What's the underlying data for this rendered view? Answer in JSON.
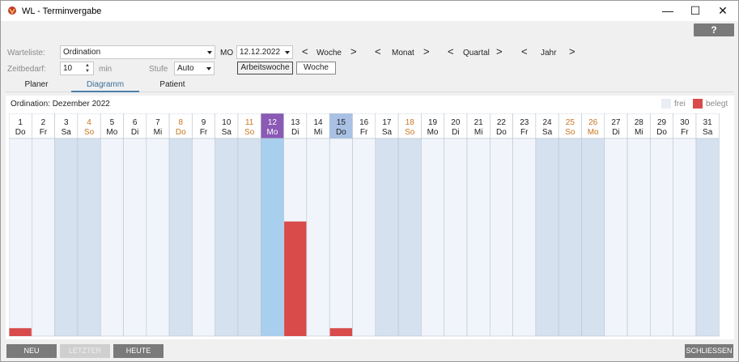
{
  "window": {
    "title": "WL - Terminvergabe",
    "minimize_glyph": "—",
    "maximize_glyph": "☐",
    "close_glyph": "✕"
  },
  "help_button": {
    "label": "?"
  },
  "form": {
    "warteliste_label": "Warteliste:",
    "warteliste_value": "Ordination",
    "weekday": "MO",
    "date_value": "12.12.2022",
    "zeitbedarf_label": "Zeitbedarf:",
    "zeitbedarf_value": "10",
    "zeitbedarf_unit": "min",
    "stufe_label": "Stufe",
    "stufe_value": "Auto",
    "nav": [
      {
        "prev": "<",
        "label": "Woche",
        "next": ">"
      },
      {
        "prev": "<",
        "label": "Monat",
        "next": ">"
      },
      {
        "prev": "<",
        "label": "Quartal",
        "next": ">"
      },
      {
        "prev": "<",
        "label": "Jahr",
        "next": ">"
      }
    ],
    "toggle_arbeitswoche": "Arbeitswoche",
    "toggle_woche": "Woche"
  },
  "tabs": [
    {
      "label": "Planer",
      "active": false
    },
    {
      "label": "Diagramm",
      "active": true
    },
    {
      "label": "Patient",
      "active": false
    }
  ],
  "diagram": {
    "title": "Ordination: Dezember 2022",
    "legend": [
      {
        "label": "frei",
        "color": "#e9eef5"
      },
      {
        "label": "belegt",
        "color": "#d94a4a"
      }
    ]
  },
  "chart_data": {
    "type": "bar",
    "title": "Ordination: Dezember 2022",
    "categories": [
      "1 Do",
      "2 Fr",
      "3 Sa",
      "4 So",
      "5 Mo",
      "6 Di",
      "7 Mi",
      "8 Do",
      "9 Fr",
      "10 Sa",
      "11 So",
      "12 Mo",
      "13 Di",
      "14 Mi",
      "15 Do",
      "16 Fr",
      "17 Sa",
      "18 So",
      "19 Mo",
      "20 Di",
      "21 Mi",
      "22 Do",
      "23 Fr",
      "24 Sa",
      "25 So",
      "26 Mo",
      "27 Di",
      "28 Mi",
      "29 Do",
      "30 Fr",
      "31 Sa"
    ],
    "days": [
      {
        "num": "1",
        "wd": "Do",
        "kind": "workday",
        "holiday": false,
        "belegt": 0.04
      },
      {
        "num": "2",
        "wd": "Fr",
        "kind": "workday",
        "holiday": false,
        "belegt": 0
      },
      {
        "num": "3",
        "wd": "Sa",
        "kind": "weekend",
        "holiday": false,
        "belegt": 0
      },
      {
        "num": "4",
        "wd": "So",
        "kind": "weekend",
        "holiday": true,
        "belegt": 0
      },
      {
        "num": "5",
        "wd": "Mo",
        "kind": "workday",
        "holiday": false,
        "belegt": 0
      },
      {
        "num": "6",
        "wd": "Di",
        "kind": "workday",
        "holiday": false,
        "belegt": 0
      },
      {
        "num": "7",
        "wd": "Mi",
        "kind": "workday",
        "holiday": false,
        "belegt": 0
      },
      {
        "num": "8",
        "wd": "Do",
        "kind": "weekend",
        "holiday": true,
        "belegt": 0
      },
      {
        "num": "9",
        "wd": "Fr",
        "kind": "workday",
        "holiday": false,
        "belegt": 0
      },
      {
        "num": "10",
        "wd": "Sa",
        "kind": "weekend",
        "holiday": false,
        "belegt": 0
      },
      {
        "num": "11",
        "wd": "So",
        "kind": "weekend",
        "holiday": true,
        "belegt": 0
      },
      {
        "num": "12",
        "wd": "Mo",
        "kind": "selected",
        "holiday": false,
        "belegt": 0
      },
      {
        "num": "13",
        "wd": "Di",
        "kind": "workday",
        "holiday": false,
        "belegt": 0.58
      },
      {
        "num": "14",
        "wd": "Mi",
        "kind": "workday",
        "holiday": false,
        "belegt": 0
      },
      {
        "num": "15",
        "wd": "Do",
        "kind": "today",
        "holiday": false,
        "belegt": 0.04
      },
      {
        "num": "16",
        "wd": "Fr",
        "kind": "workday",
        "holiday": false,
        "belegt": 0
      },
      {
        "num": "17",
        "wd": "Sa",
        "kind": "weekend",
        "holiday": false,
        "belegt": 0
      },
      {
        "num": "18",
        "wd": "So",
        "kind": "weekend",
        "holiday": true,
        "belegt": 0
      },
      {
        "num": "19",
        "wd": "Mo",
        "kind": "workday",
        "holiday": false,
        "belegt": 0
      },
      {
        "num": "20",
        "wd": "Di",
        "kind": "workday",
        "holiday": false,
        "belegt": 0
      },
      {
        "num": "21",
        "wd": "Mi",
        "kind": "workday",
        "holiday": false,
        "belegt": 0
      },
      {
        "num": "22",
        "wd": "Do",
        "kind": "workday",
        "holiday": false,
        "belegt": 0
      },
      {
        "num": "23",
        "wd": "Fr",
        "kind": "workday",
        "holiday": false,
        "belegt": 0
      },
      {
        "num": "24",
        "wd": "Sa",
        "kind": "weekend",
        "holiday": false,
        "belegt": 0
      },
      {
        "num": "25",
        "wd": "So",
        "kind": "weekend",
        "holiday": true,
        "belegt": 0
      },
      {
        "num": "26",
        "wd": "Mo",
        "kind": "weekend",
        "holiday": true,
        "belegt": 0
      },
      {
        "num": "27",
        "wd": "Di",
        "kind": "workday",
        "holiday": false,
        "belegt": 0
      },
      {
        "num": "28",
        "wd": "Mi",
        "kind": "workday",
        "holiday": false,
        "belegt": 0
      },
      {
        "num": "29",
        "wd": "Do",
        "kind": "workday",
        "holiday": false,
        "belegt": 0
      },
      {
        "num": "30",
        "wd": "Fr",
        "kind": "workday",
        "holiday": false,
        "belegt": 0
      },
      {
        "num": "31",
        "wd": "Sa",
        "kind": "weekend",
        "holiday": false,
        "belegt": 0
      }
    ],
    "colors": {
      "workday_bg": "#f1f5fb",
      "weekend_bg": "#d5e1ef",
      "selected_bg": "#a8d0ee",
      "selected_header": "#8a5ab5",
      "today_header": "#a9c1e4",
      "holiday_text": "#c8741e",
      "belegt": "#d94a4a"
    }
  },
  "bottom_buttons": [
    {
      "label": "NEU",
      "enabled": true
    },
    {
      "label": "LETZTER",
      "enabled": false
    },
    {
      "label": "HEUTE",
      "enabled": true
    },
    {
      "label": "SCHLIESSEN",
      "enabled": true
    }
  ]
}
